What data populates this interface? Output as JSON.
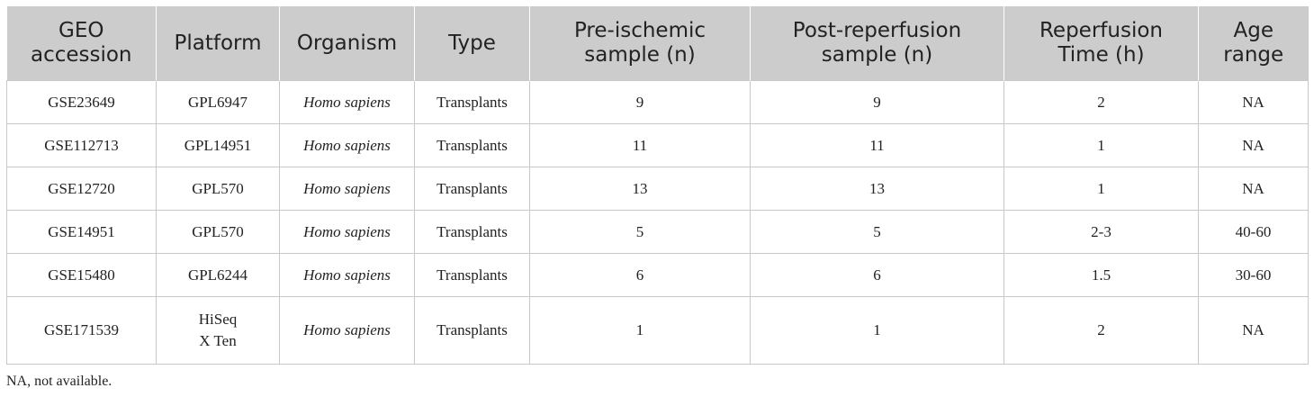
{
  "table": {
    "headers": [
      "GEO\naccession",
      "Platform",
      "Organism",
      "Type",
      "Pre-ischemic\nsample (n)",
      "Post-reperfusion\nsample (n)",
      "Reperfusion\nTime (h)",
      "Age\nrange"
    ],
    "rows": [
      [
        "GSE23649",
        "GPL6947",
        "Homo sapiens",
        "Transplants",
        "9",
        "9",
        "2",
        "NA"
      ],
      [
        "GSE112713",
        "GPL14951",
        "Homo sapiens",
        "Transplants",
        "11",
        "11",
        "1",
        "NA"
      ],
      [
        "GSE12720",
        "GPL570",
        "Homo sapiens",
        "Transplants",
        "13",
        "13",
        "1",
        "NA"
      ],
      [
        "GSE14951",
        "GPL570",
        "Homo sapiens",
        "Transplants",
        "5",
        "5",
        "2-3",
        "40-60"
      ],
      [
        "GSE15480",
        "GPL6244",
        "Homo sapiens",
        "Transplants",
        "6",
        "6",
        "1.5",
        "30-60"
      ],
      [
        "GSE171539",
        "HiSeq\nX Ten",
        "Homo sapiens",
        "Transplants",
        "1",
        "1",
        "2",
        "NA"
      ]
    ]
  },
  "footnote": "NA, not available.",
  "colors": {
    "header_background": "#cccccc",
    "border": "#c8c8c8",
    "text": "#222222"
  }
}
